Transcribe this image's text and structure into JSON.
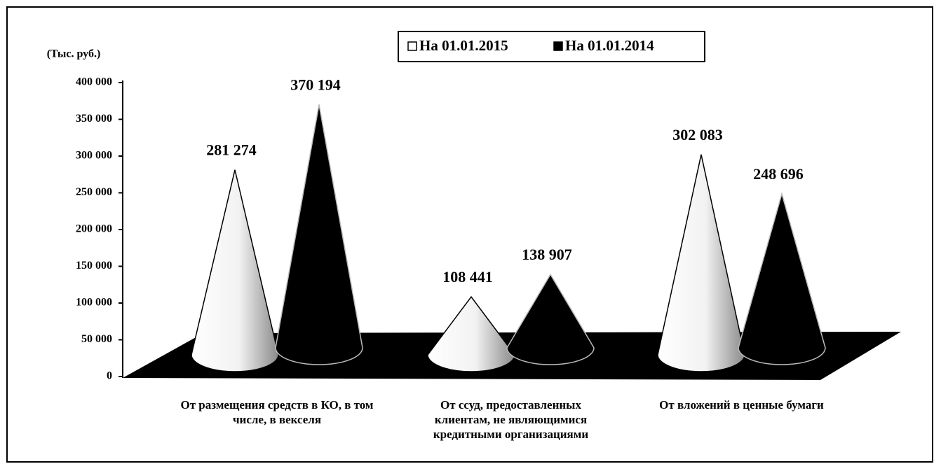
{
  "chart_data": {
    "type": "cone",
    "y_axis_label": "(Тыс. руб.)",
    "categories": [
      "От размещения средств в КО, в том числе, в векселя",
      "От ссуд, предоставленных клиентам, не являющимися кредитными организациями",
      "От вложений в ценные бумаги"
    ],
    "series": [
      {
        "name": "На 01.01.2015",
        "color": "#ffffff",
        "values": [
          281274,
          108441,
          302083
        ],
        "value_labels": [
          "281 274",
          "108 441",
          "302 083"
        ]
      },
      {
        "name": "На 01.01.2014",
        "color": "#000000",
        "values": [
          370194,
          138907,
          248696
        ],
        "value_labels": [
          "370 194",
          "138 907",
          "248 696"
        ]
      }
    ],
    "ylim": [
      0,
      400000
    ],
    "yticks": [
      0,
      {
        "value": 50000,
        "label": "50 000"
      },
      {
        "value": 100000,
        "label": "100 000"
      },
      {
        "value": 150000,
        "label": "150 000"
      },
      {
        "value": 200000,
        "label": "200 000"
      },
      {
        "value": 250000,
        "label": "250 000"
      },
      {
        "value": 300000,
        "label": "300 000"
      },
      {
        "value": 350000,
        "label": "350 000"
      },
      {
        "value": 400000,
        "label": "400 000"
      }
    ],
    "legend": "top",
    "grid": false
  }
}
